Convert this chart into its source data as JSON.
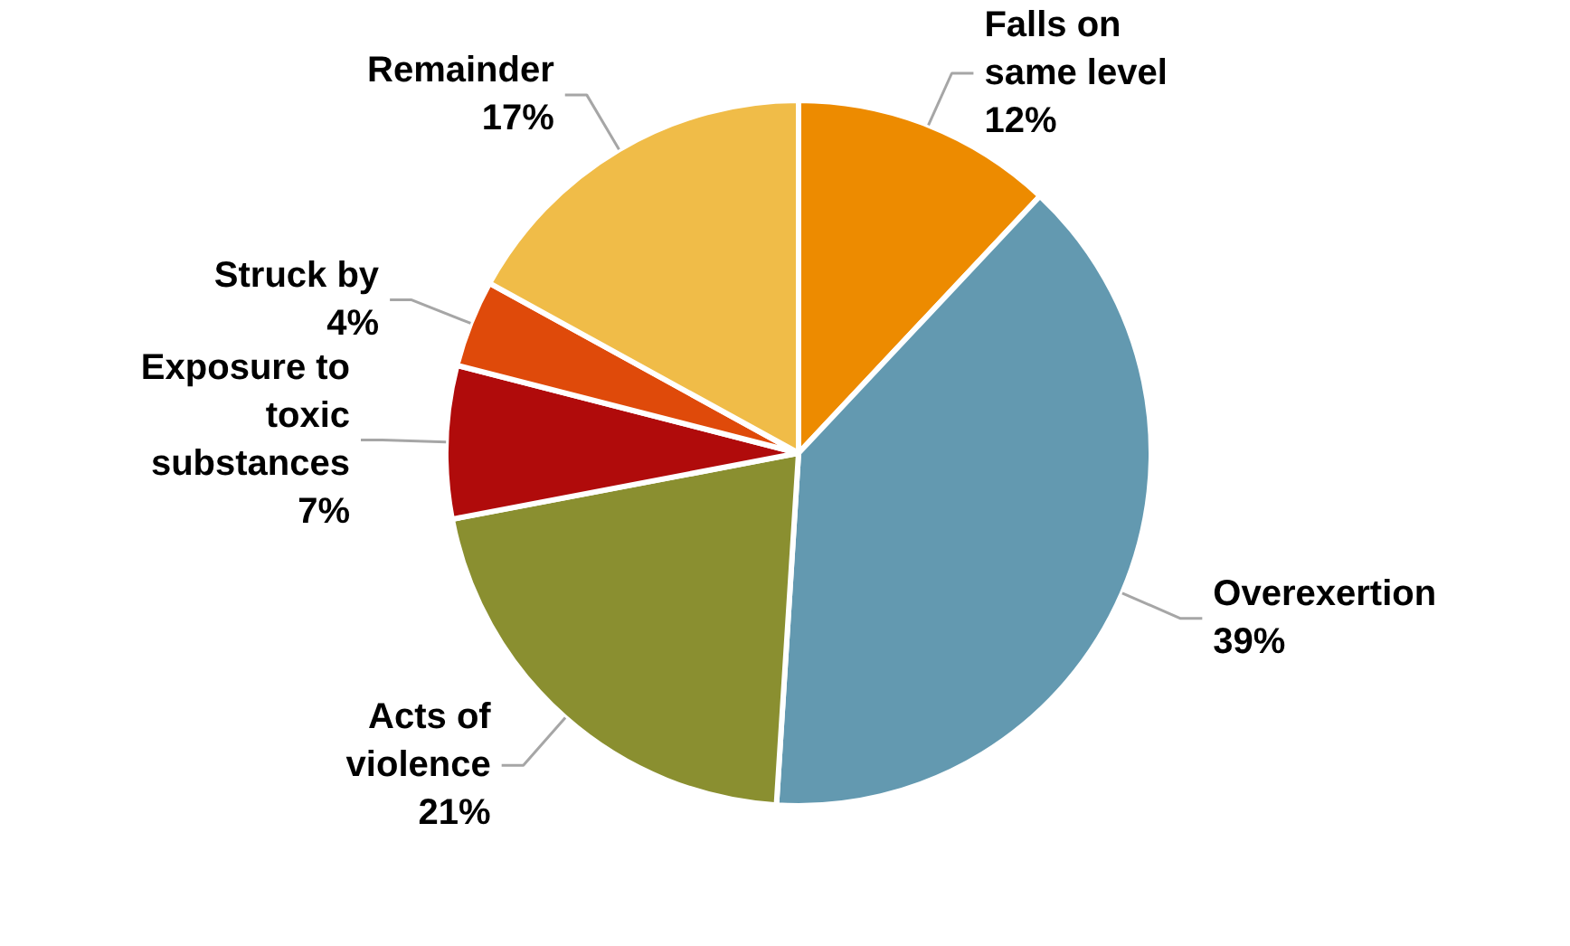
{
  "chart_data": {
    "type": "pie",
    "categories": [
      "Falls on same level",
      "Overexertion",
      "Acts of violence",
      "Exposure to toxic substances",
      "Struck by",
      "Remainder"
    ],
    "values": [
      12,
      39,
      21,
      7,
      4,
      17
    ],
    "colors": [
      "#ed8b00",
      "#6399b0",
      "#8a8f30",
      "#b00b0b",
      "#df4a0a",
      "#f0bc48"
    ],
    "value_labels": [
      "12%",
      "39%",
      "21%",
      "7%",
      "4%",
      "17%"
    ]
  }
}
